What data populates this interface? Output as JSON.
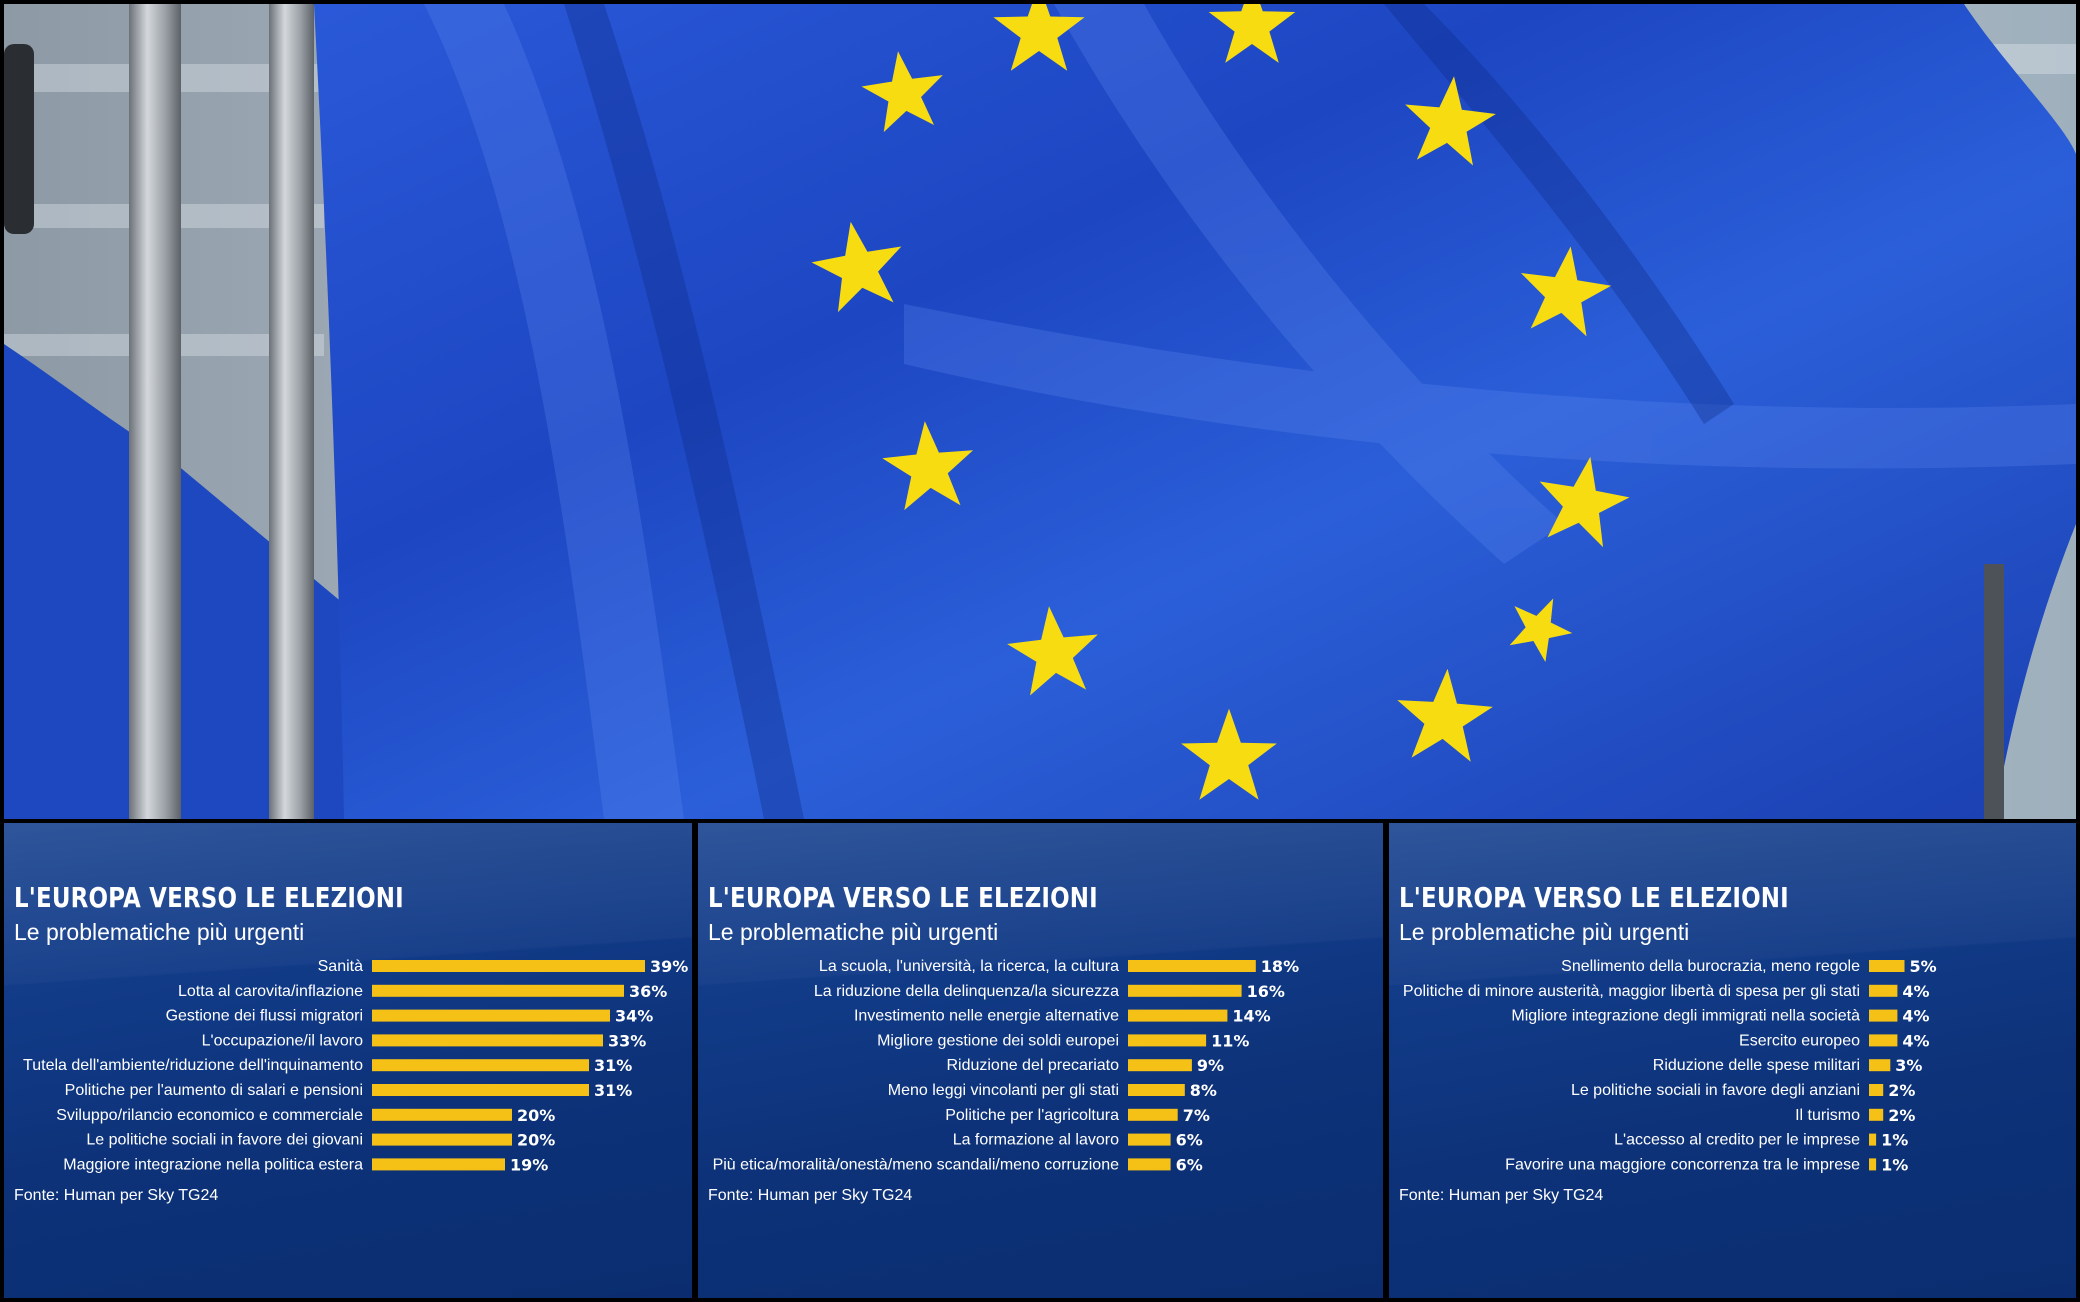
{
  "colors": {
    "panel_bg": "#0e357d",
    "bar": "#f5c116",
    "text": "#ffffff",
    "flag_blue": "#1f4fd1",
    "star": "#ffdd00"
  },
  "photo": {
    "subject": "EU flag with gold stars waving in front of a building",
    "icon": "eu-flag-image"
  },
  "chart_data": [
    {
      "type": "bar",
      "orientation": "horizontal",
      "title": "L'EUROPA VERSO LE ELEZIONI",
      "subtitle": "Le problematiche più urgenti",
      "source": "Fonte: Human per Sky TG24",
      "categories": [
        "Sanità",
        "Lotta al carovita/inflazione",
        "Gestione dei flussi migratori",
        "L'occupazione/il lavoro",
        "Tutela dell'ambiente/riduzione dell'inquinamento",
        "Politiche per l'aumento di salari e pensioni",
        "Sviluppo/rilancio economico e commerciale",
        "Le politiche sociali in favore dei giovani",
        "Maggiore integrazione nella politica estera"
      ],
      "values": [
        39,
        36,
        34,
        33,
        31,
        31,
        20,
        20,
        19
      ],
      "value_labels": [
        "39%",
        "36%",
        "34%",
        "33%",
        "31%",
        "31%",
        "20%",
        "20%",
        "19%"
      ],
      "unit": "%"
    },
    {
      "type": "bar",
      "orientation": "horizontal",
      "title": "L'EUROPA VERSO LE ELEZIONI",
      "subtitle": "Le problematiche più urgenti",
      "source": "Fonte: Human per Sky TG24",
      "categories": [
        "La scuola, l'università, la ricerca, la cultura",
        "La riduzione della delinquenza/la sicurezza",
        "Investimento nelle energie alternative",
        "Migliore gestione dei soldi europei",
        "Riduzione del precariato",
        "Meno leggi vincolanti per gli stati",
        "Politiche per l'agricoltura",
        "La formazione al lavoro",
        "Più etica/moralità/onestà/meno scandali/meno corruzione"
      ],
      "values": [
        18,
        16,
        14,
        11,
        9,
        8,
        7,
        6,
        6
      ],
      "value_labels": [
        "18%",
        "16%",
        "14%",
        "11%",
        "9%",
        "8%",
        "7%",
        "6%",
        "6%"
      ],
      "unit": "%"
    },
    {
      "type": "bar",
      "orientation": "horizontal",
      "title": "L'EUROPA VERSO LE ELEZIONI",
      "subtitle": "Le problematiche più urgenti",
      "source": "Fonte: Human per Sky TG24",
      "categories": [
        "Snellimento della burocrazia, meno regole",
        "Politiche di minore austerità, maggior libertà di spesa per gli stati",
        "Migliore integrazione degli immigrati nella società",
        "Esercito europeo",
        "Riduzione delle spese militari",
        "Le politiche sociali in favore degli anziani",
        "Il turismo",
        "L'accesso al credito per le imprese",
        "Favorire una maggiore concorrenza tra le imprese"
      ],
      "values": [
        5,
        4,
        4,
        4,
        3,
        2,
        2,
        1,
        1
      ],
      "value_labels": [
        "5%",
        "4%",
        "4%",
        "4%",
        "3%",
        "2%",
        "2%",
        "1%",
        "1%"
      ],
      "unit": "%"
    }
  ]
}
